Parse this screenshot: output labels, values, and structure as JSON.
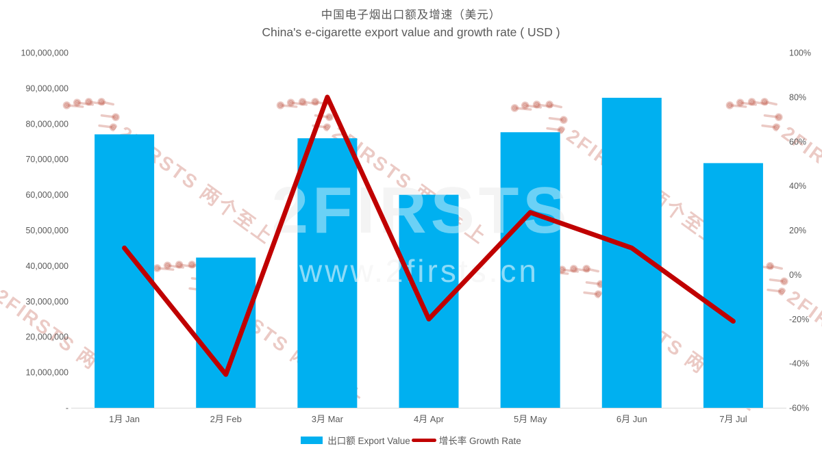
{
  "chart": {
    "title_zh": "中国电子烟出口额及增速（美元）",
    "title_en": "China's e-cigarette export value and growth rate ( USD )"
  },
  "chart_data": {
    "type": "combo_bar_line",
    "categories": [
      "1月 Jan",
      "2月 Feb",
      "3月 Mar",
      "4月 Apr",
      "5月 May",
      "6月 Jun",
      "7月 Jul"
    ],
    "series": [
      {
        "name": "出口额 Export Value",
        "type": "bar",
        "axis": "left",
        "color": "#00B0F0",
        "values": [
          77000000,
          42300000,
          75900000,
          60000000,
          77600000,
          87300000,
          68900000
        ]
      },
      {
        "name": "增长率 Growth Rate",
        "type": "line",
        "axis": "right",
        "color": "#C00000",
        "values": [
          12,
          -45,
          80,
          -20,
          28,
          12,
          -21
        ]
      }
    ],
    "left_axis": {
      "min": 0,
      "max": 100000000,
      "tick_labels": [
        "100,000,000",
        "90,000,000",
        "80,000,000",
        "70,000,000",
        "60,000,000",
        "50,000,000",
        "40,000,000",
        "30,000,000",
        "20,000,000",
        "10,000,000",
        "-"
      ]
    },
    "right_axis": {
      "min": -60,
      "max": 100,
      "tick_labels": [
        "100%",
        "80%",
        "60%",
        "40%",
        "20%",
        "0%",
        "-20%",
        "-40%",
        "-60%"
      ]
    },
    "legend_position": "bottom",
    "gridlines": false
  },
  "watermark": {
    "brand_text": "2FIRSTS 两个至上",
    "center_line1": "2FIRSTS",
    "center_line2": "www.2firsts.cn",
    "pink_color": "rgba(189,78,64,0.30)"
  },
  "colors": {
    "axis_text": "#595959",
    "axis_line": "#d9d9d9",
    "background": "#ffffff"
  }
}
